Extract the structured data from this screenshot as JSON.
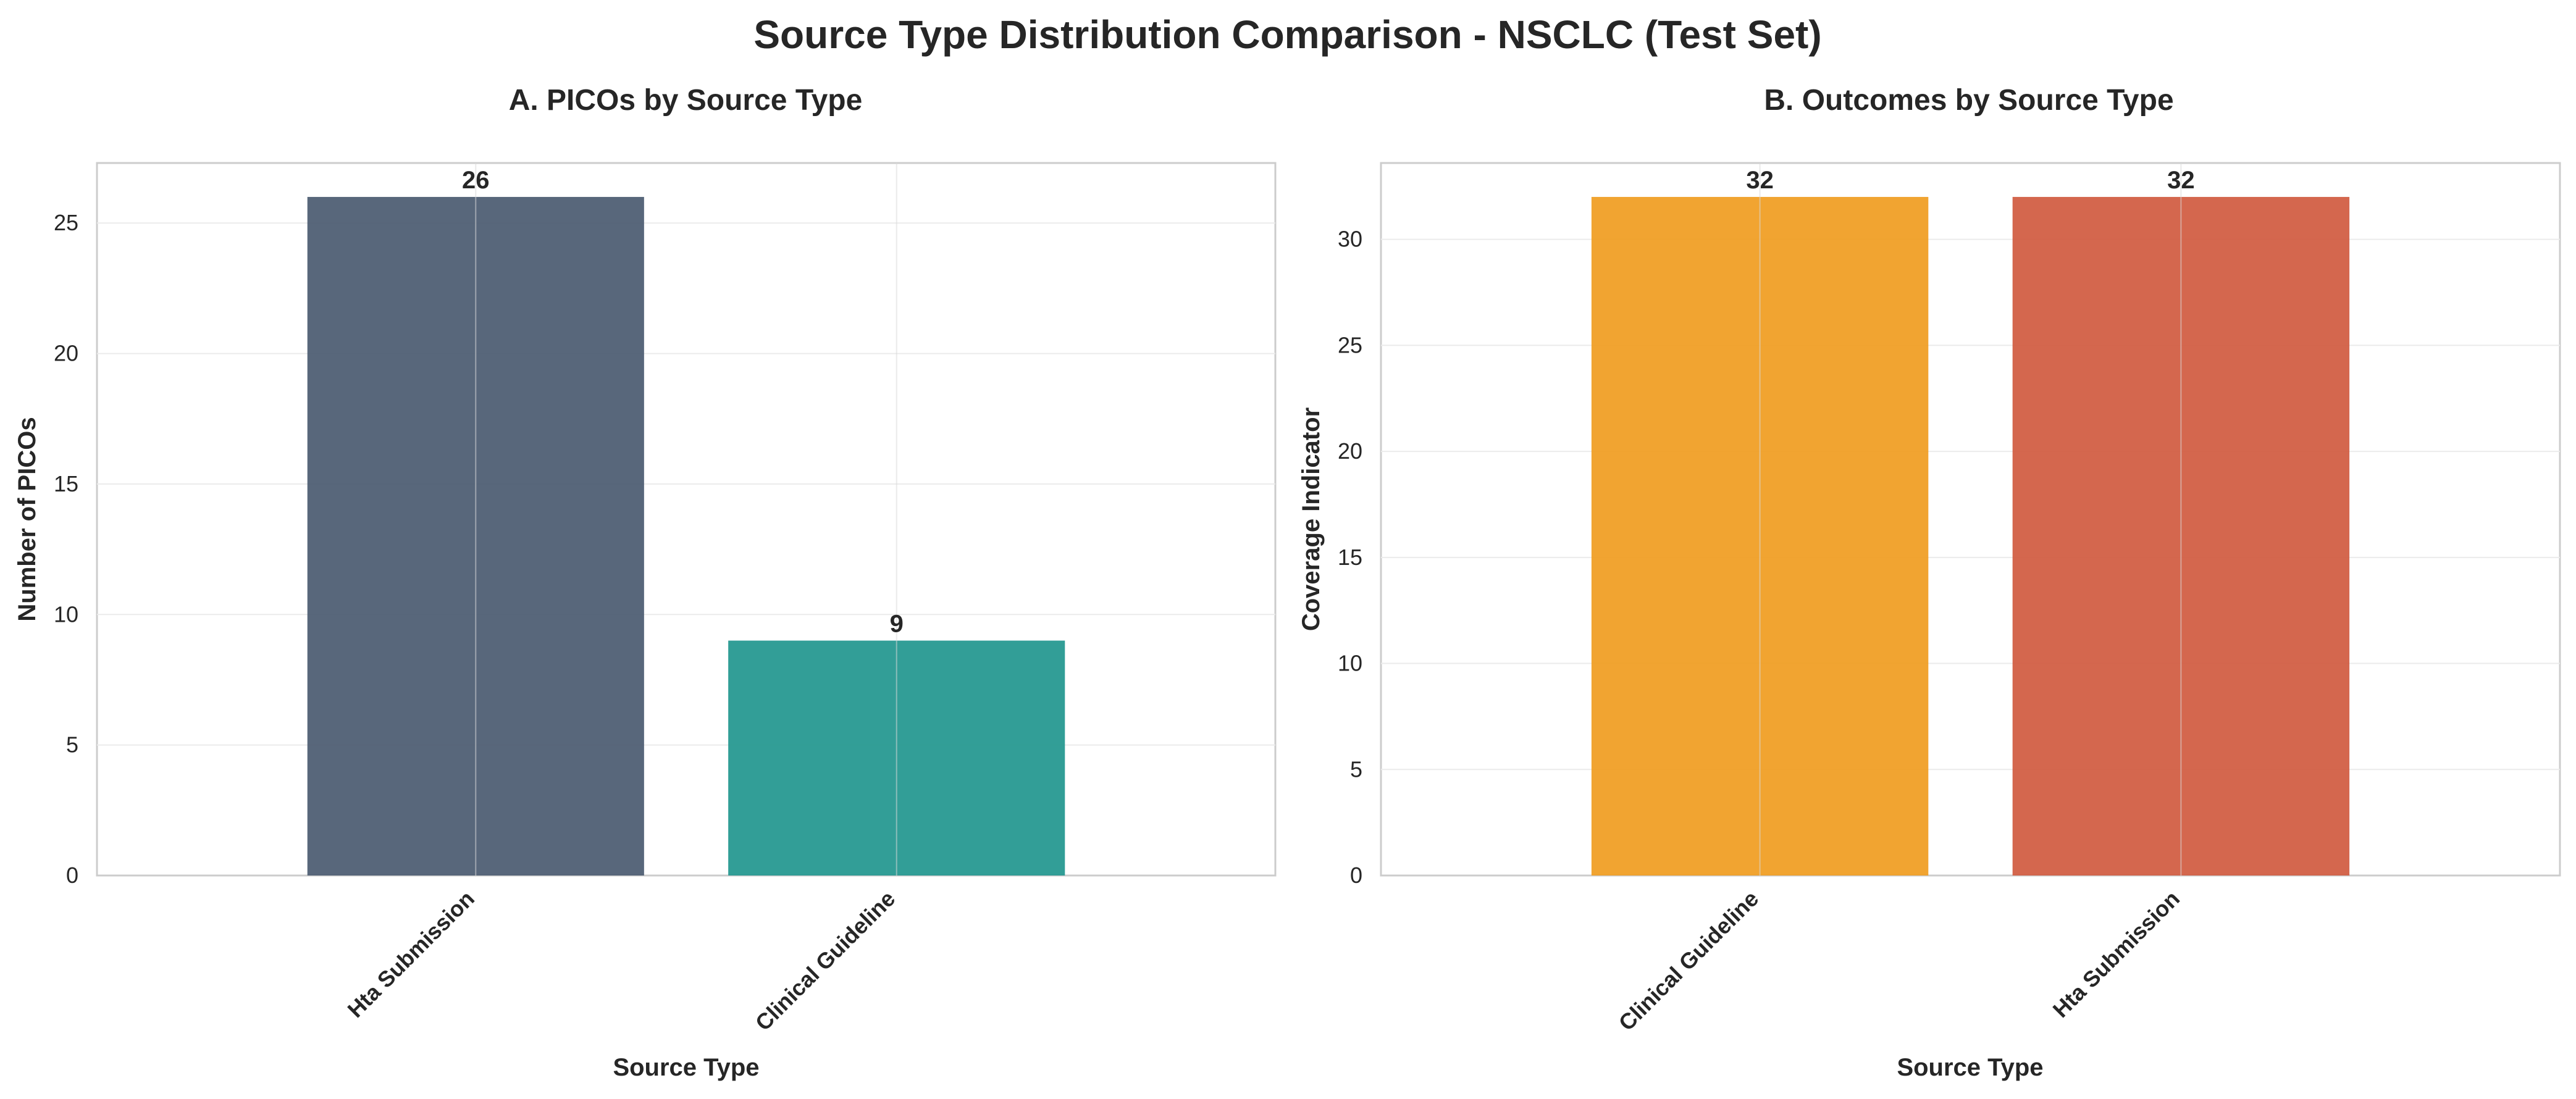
{
  "figure": {
    "title": "Source Type Distribution Comparison - NSCLC (Test Set)"
  },
  "chart_data": [
    {
      "type": "bar",
      "title": "A. PICOs by Source Type",
      "xlabel": "Source Type",
      "ylabel": "Number of PICOs",
      "categories": [
        "Hta Submission",
        "Clinical Guideline"
      ],
      "values": [
        26,
        9
      ],
      "colors": [
        "#4a5a70",
        "#21968e"
      ],
      "ylim": [
        0,
        27.3
      ],
      "yticks": [
        0,
        5,
        10,
        15,
        20,
        25
      ],
      "grid": true,
      "legend": "none"
    },
    {
      "type": "bar",
      "title": "B. Outcomes by Source Type",
      "xlabel": "Source Type",
      "ylabel": "Coverage Indicator",
      "categories": [
        "Clinical Guideline",
        "Hta Submission"
      ],
      "values": [
        32,
        32
      ],
      "colors": [
        "#f09c20",
        "#d05a3f"
      ],
      "ylim": [
        0,
        33.6
      ],
      "yticks": [
        0,
        5,
        10,
        15,
        20,
        25,
        30
      ],
      "grid": true,
      "legend": "none"
    }
  ]
}
